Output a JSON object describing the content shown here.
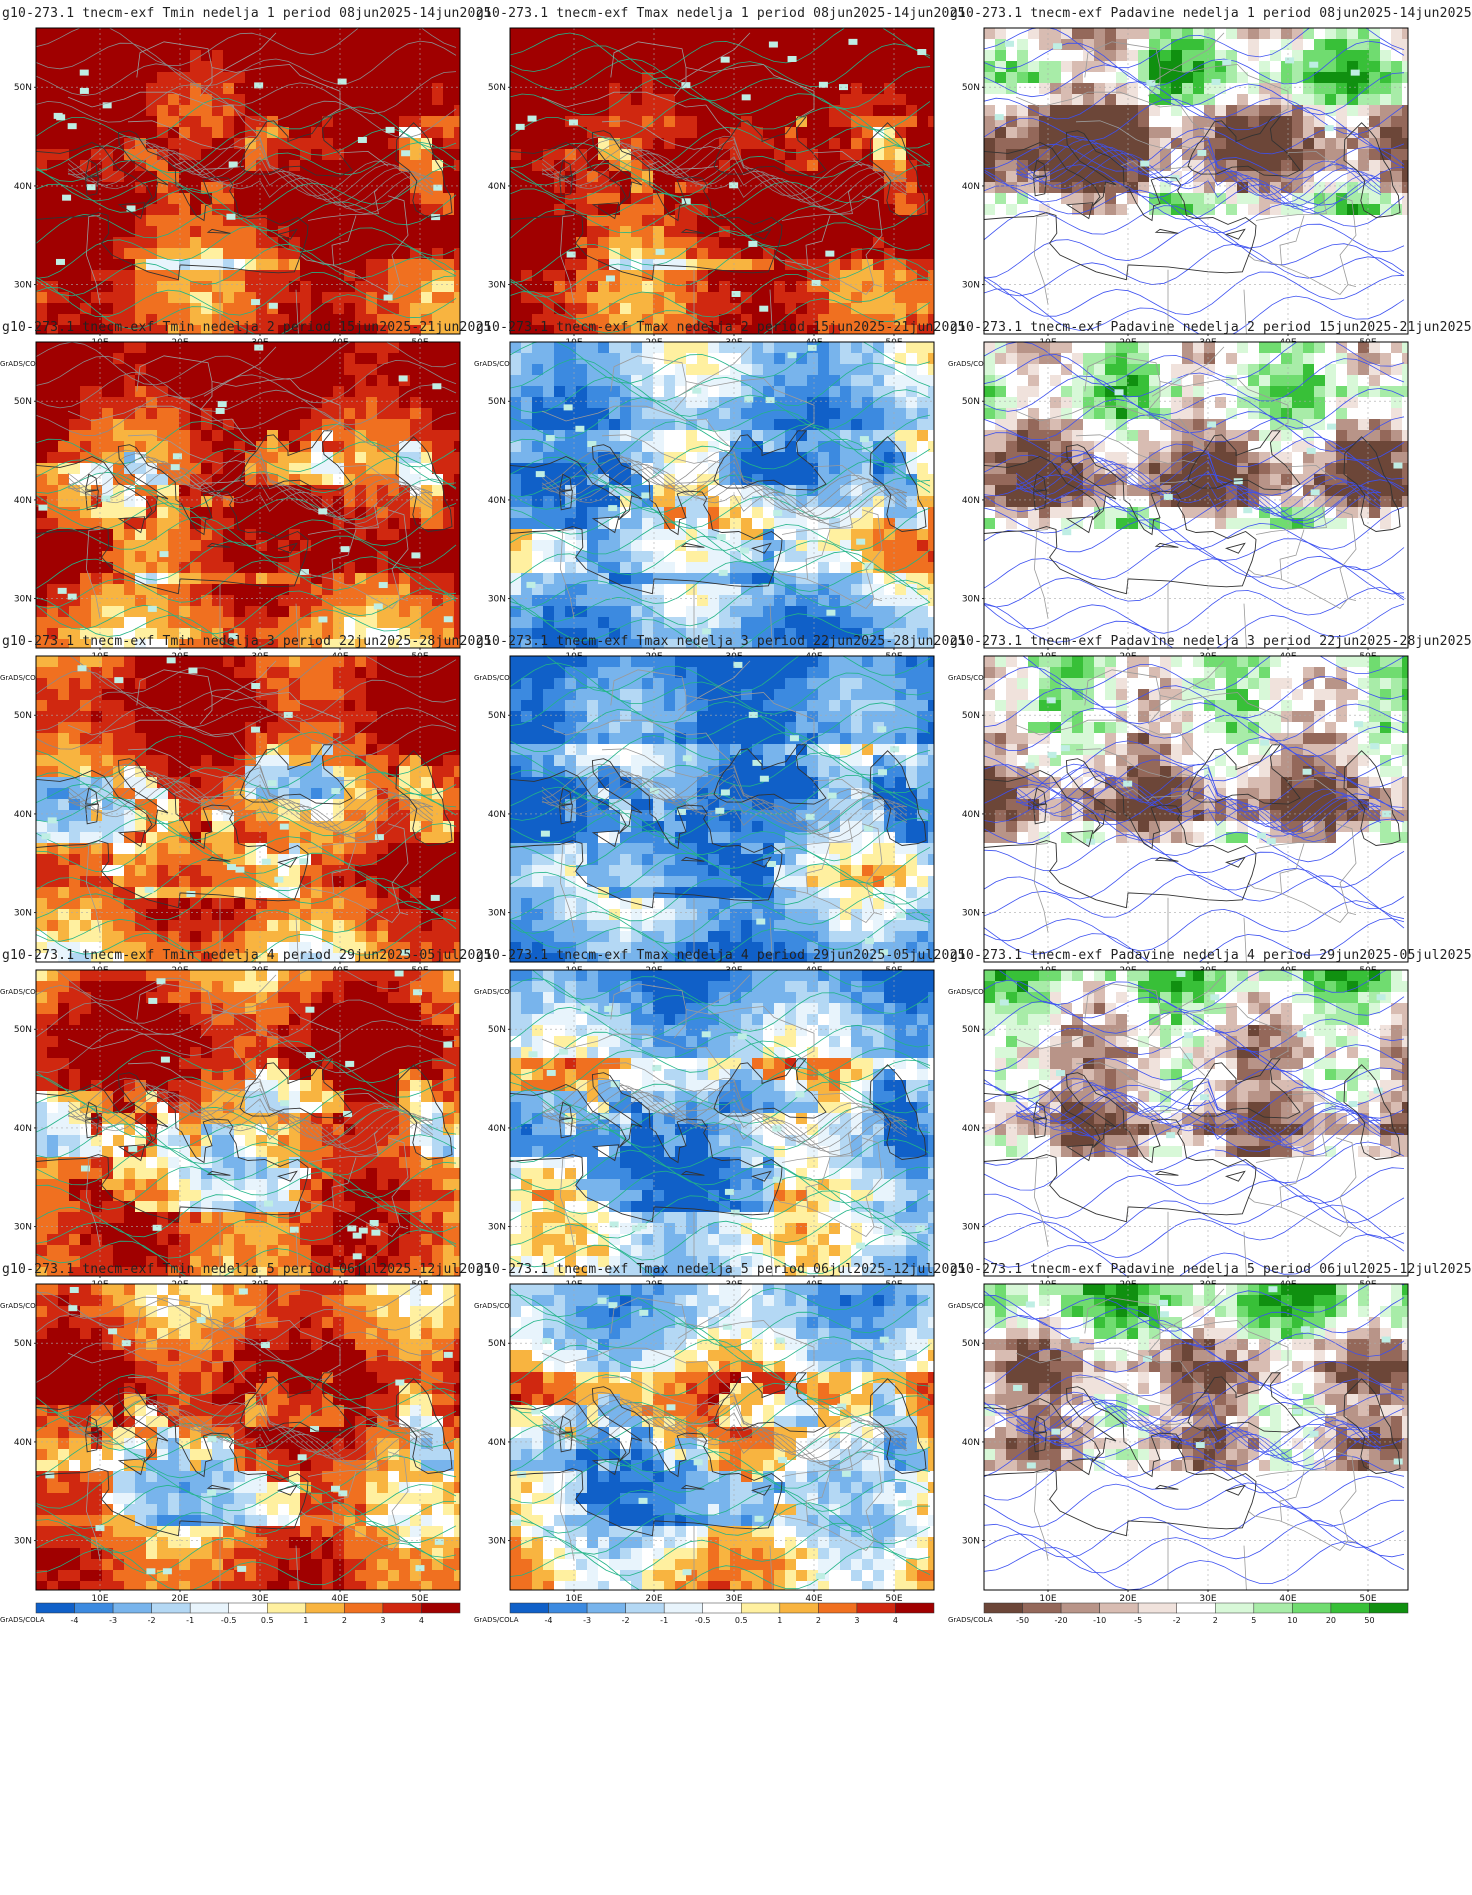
{
  "footer_tag": "GrADS/COLA",
  "temp_scale_labels": [
    "-4",
    "-3",
    "-2",
    "-1",
    "-0.5",
    "0.5",
    "1",
    "2",
    "3",
    "4"
  ],
  "precip_scale_labels": [
    "-50",
    "-20",
    "-10",
    "-5",
    "-2",
    "2",
    "5",
    "10",
    "20",
    "50"
  ],
  "temp_colors": [
    "#1060c8",
    "#3c8ae0",
    "#78b4ec",
    "#b4d8f4",
    "#e8f4fc",
    "#ffffff",
    "#fff0a0",
    "#f8b440",
    "#f07020",
    "#d02810",
    "#a00000"
  ],
  "precip_colors": [
    "#6c4638",
    "#94685a",
    "#b89488",
    "#d8bcb2",
    "#f0e2dc",
    "#ffffff",
    "#d8f8d8",
    "#a8eca8",
    "#70dc70",
    "#38c038",
    "#109010"
  ],
  "lat_labels": [
    "50N",
    "40N",
    "30N"
  ],
  "lon_labels": [
    "10E",
    "20E",
    "30E",
    "40E",
    "50E"
  ],
  "rows": [
    {
      "temp_bias": [
        4,
        4
      ],
      "panels": [
        {
          "type": "tmin",
          "title": "g10-273.1 tnecm-exf Tmin nedelja 1 period 08jun2025-14jun2025"
        },
        {
          "type": "tmax",
          "title": "g10-273.1 tnecm-exf Tmax nedelja 1 period 08jun2025-14jun2025"
        },
        {
          "type": "precip",
          "title": "g10-273.1 tnecm-exf Padavine nedelja 1 period 08jun2025-14jun2025"
        }
      ]
    },
    {
      "temp_bias": [
        3,
        -1
      ],
      "panels": [
        {
          "type": "tmin",
          "title": "g10-273.1 tnecm-exf Tmin nedelja 2 period 15jun2025-21jun2025"
        },
        {
          "type": "tmax",
          "title": "g10-273.1 tnecm-exf Tmax nedelja 2 period 15jun2025-21jun2025"
        },
        {
          "type": "precip",
          "title": "g10-273.1 tnecm-exf Padavine nedelja 2 period 15jun2025-21jun2025"
        }
      ]
    },
    {
      "temp_bias": [
        2,
        -2
      ],
      "panels": [
        {
          "type": "tmin",
          "title": "g10-273.1 tnecm-exf Tmin nedelja 3 period 22jun2025-28jun2025"
        },
        {
          "type": "tmax",
          "title": "g10-273.1 tnecm-exf Tmax nedelja 3 period 22jun2025-28jun2025"
        },
        {
          "type": "precip",
          "title": "g10-273.1 tnecm-exf Padavine nedelja 3 period 22jun2025-28jun2025"
        }
      ]
    },
    {
      "temp_bias": [
        2,
        -1
      ],
      "panels": [
        {
          "type": "tmin",
          "title": "g10-273.1 tnecm-exf Tmin nedelja 4 period 29jun2025-05jul2025"
        },
        {
          "type": "tmax",
          "title": "g10-273.1 tnecm-exf Tmax nedelja 4 period 29jun2025-05jul2025"
        },
        {
          "type": "precip",
          "title": "g10-273.1 tnecm-exf Padavine nedelja 4 period 29jun2025-05jul2025"
        }
      ]
    },
    {
      "temp_bias": [
        2,
        0
      ],
      "panels": [
        {
          "type": "tmin",
          "title": "g10-273.1 tnecm-exf Tmin nedelja 5 period 06jul2025-12jul2025"
        },
        {
          "type": "tmax",
          "title": "g10-273.1 tnecm-exf Tmax nedelja 5 period 06jul2025-12jul2025"
        },
        {
          "type": "precip",
          "title": "g10-273.1 tnecm-exf Padavine nedelja 5 period 06jul2025-12jul2025"
        }
      ]
    }
  ]
}
